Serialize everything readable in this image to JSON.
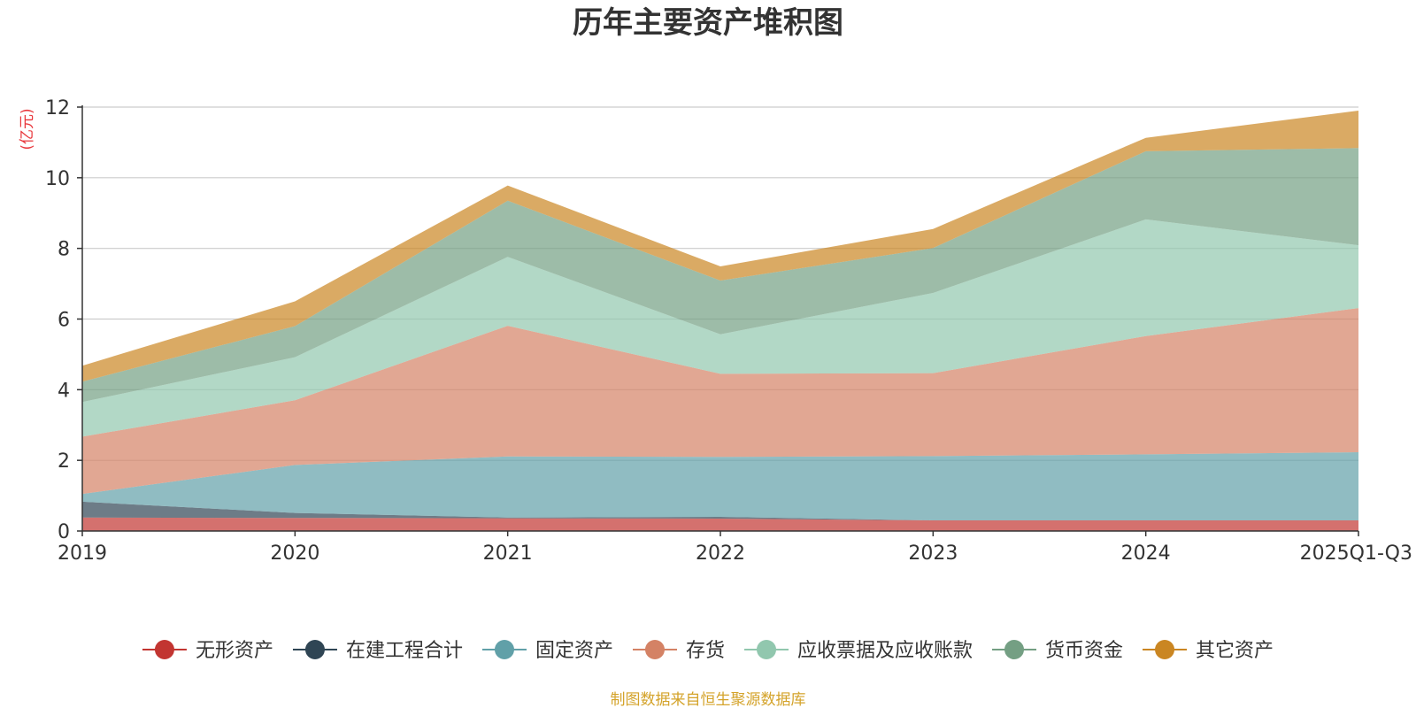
{
  "chart_data": {
    "type": "area",
    "stacked": true,
    "title": "历年主要资产堆积图",
    "unit_label": "(亿元)",
    "categories": [
      "2019",
      "2020",
      "2021",
      "2022",
      "2023",
      "2024",
      "2025Q1-Q3"
    ],
    "ylim": [
      0,
      12
    ],
    "yticks": [
      "0",
      "2",
      "4",
      "6",
      "8",
      "10",
      "12"
    ],
    "grid": true,
    "legend_position": "bottom",
    "series": [
      {
        "name": "无形资产",
        "color": "#c23531",
        "legend_color": "#c23531",
        "values": [
          0.38,
          0.37,
          0.36,
          0.35,
          0.3,
          0.3,
          0.3
        ]
      },
      {
        "name": "在建工程合计",
        "color": "#2f4554",
        "legend_color": "#2f4554",
        "values": [
          0.45,
          0.14,
          0.02,
          0.05,
          0.0,
          0.0,
          0.0
        ]
      },
      {
        "name": "固定资产",
        "color": "#61a0a8",
        "legend_color": "#61a0a8",
        "values": [
          0.22,
          1.36,
          1.73,
          1.7,
          1.82,
          1.87,
          1.93
        ]
      },
      {
        "name": "存货",
        "color": "#d48265",
        "legend_color": "#d48265",
        "values": [
          1.62,
          1.83,
          3.7,
          2.35,
          2.35,
          3.35,
          4.08
        ]
      },
      {
        "name": "应收票据及应收账款",
        "color": "#91c7ae",
        "legend_color": "#91c7ae",
        "values": [
          0.98,
          1.22,
          1.95,
          1.12,
          2.27,
          3.3,
          1.78
        ]
      },
      {
        "name": "货币资金",
        "color": "#749f83",
        "legend_color": "#749f83",
        "values": [
          0.58,
          0.88,
          1.59,
          1.52,
          1.27,
          1.93,
          2.75
        ]
      },
      {
        "name": "其它资产",
        "color": "#ca8622",
        "legend_color": "#ca8622",
        "values": [
          0.45,
          0.7,
          0.43,
          0.4,
          0.54,
          0.38,
          1.06
        ]
      }
    ],
    "source_note": "制图数据来自恒生聚源数据库",
    "colors": {
      "unit": "#e8363b",
      "source": "#d4a32a",
      "axis": "#333333",
      "grid": "#cccccc"
    }
  }
}
